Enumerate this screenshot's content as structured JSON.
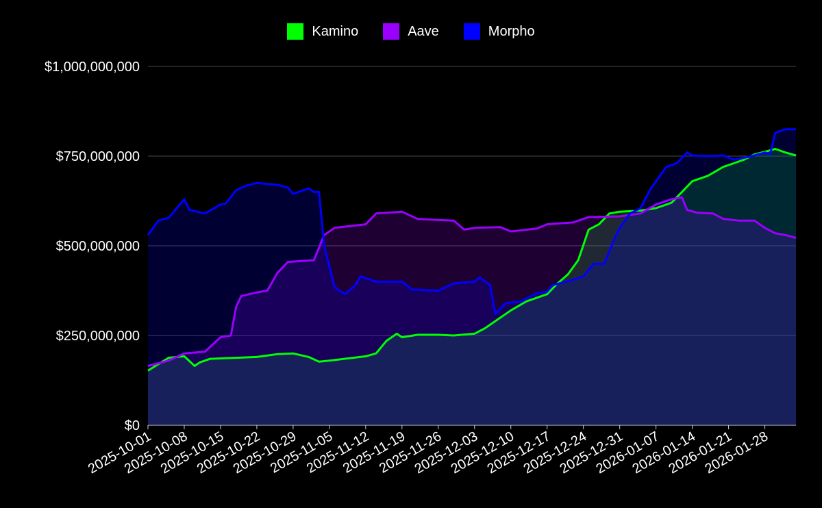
{
  "chart_data": {
    "type": "area",
    "title": "",
    "xlabel": "",
    "ylabel": "",
    "legend_position": "top-center",
    "grid": true,
    "ylim": [
      0,
      1000000000
    ],
    "y_ticks": [
      0,
      250000000,
      500000000,
      750000000,
      1000000000
    ],
    "y_tick_labels": [
      "$0",
      "$250,000,000",
      "$500,000,000",
      "$750,000,000",
      "$1,000,000,000"
    ],
    "x_range": [
      "2025-10-01",
      "2026-02-03"
    ],
    "x_tick_labels": [
      "2025-10-01",
      "2025-10-08",
      "2025-10-15",
      "2025-10-22",
      "2025-10-29",
      "2025-11-05",
      "2025-11-12",
      "2025-11-19",
      "2025-11-26",
      "2025-12-03",
      "2025-12-10",
      "2025-12-17",
      "2025-12-24",
      "2025-12-31",
      "2026-01-07",
      "2026-01-14",
      "2026-01-21",
      "2026-01-28"
    ],
    "series": [
      {
        "name": "Kamino",
        "color": "#00ff00",
        "fill": "#1f6b5a",
        "points": [
          [
            "2025-10-01",
            152000000
          ],
          [
            "2025-10-03",
            170000000
          ],
          [
            "2025-10-05",
            188000000
          ],
          [
            "2025-10-08",
            192000000
          ],
          [
            "2025-10-10",
            165000000
          ],
          [
            "2025-10-11",
            175000000
          ],
          [
            "2025-10-13",
            185000000
          ],
          [
            "2025-10-15",
            186000000
          ],
          [
            "2025-10-22",
            190000000
          ],
          [
            "2025-10-26",
            198000000
          ],
          [
            "2025-10-29",
            200000000
          ],
          [
            "2025-11-01",
            190000000
          ],
          [
            "2025-11-03",
            177000000
          ],
          [
            "2025-11-05",
            180000000
          ],
          [
            "2025-11-12",
            192000000
          ],
          [
            "2025-11-14",
            200000000
          ],
          [
            "2025-11-16",
            235000000
          ],
          [
            "2025-11-18",
            255000000
          ],
          [
            "2025-11-19",
            245000000
          ],
          [
            "2025-11-22",
            252000000
          ],
          [
            "2025-11-26",
            252000000
          ],
          [
            "2025-11-29",
            250000000
          ],
          [
            "2025-12-03",
            255000000
          ],
          [
            "2025-12-05",
            270000000
          ],
          [
            "2025-12-07",
            290000000
          ],
          [
            "2025-12-10",
            320000000
          ],
          [
            "2025-12-13",
            345000000
          ],
          [
            "2025-12-17",
            365000000
          ],
          [
            "2025-12-19",
            395000000
          ],
          [
            "2025-12-21",
            420000000
          ],
          [
            "2025-12-23",
            460000000
          ],
          [
            "2025-12-25",
            545000000
          ],
          [
            "2025-12-27",
            560000000
          ],
          [
            "2025-12-29",
            590000000
          ],
          [
            "2025-12-31",
            595000000
          ],
          [
            "2026-01-04",
            598000000
          ],
          [
            "2026-01-07",
            605000000
          ],
          [
            "2026-01-10",
            620000000
          ],
          [
            "2026-01-12",
            650000000
          ],
          [
            "2026-01-14",
            680000000
          ],
          [
            "2026-01-17",
            695000000
          ],
          [
            "2026-01-20",
            720000000
          ],
          [
            "2026-01-22",
            730000000
          ],
          [
            "2026-01-24",
            740000000
          ],
          [
            "2026-01-26",
            755000000
          ],
          [
            "2026-01-28",
            762000000
          ],
          [
            "2026-01-30",
            770000000
          ],
          [
            "2026-02-01",
            760000000
          ],
          [
            "2026-02-03",
            752000000
          ]
        ]
      },
      {
        "name": "Aave",
        "color": "#9b00ff",
        "fill": "#3b004e",
        "points": [
          [
            "2025-10-01",
            165000000
          ],
          [
            "2025-10-05",
            180000000
          ],
          [
            "2025-10-08",
            200000000
          ],
          [
            "2025-10-12",
            205000000
          ],
          [
            "2025-10-15",
            245000000
          ],
          [
            "2025-10-17",
            250000000
          ],
          [
            "2025-10-18",
            330000000
          ],
          [
            "2025-10-19",
            360000000
          ],
          [
            "2025-10-22",
            370000000
          ],
          [
            "2025-10-24",
            375000000
          ],
          [
            "2025-10-26",
            425000000
          ],
          [
            "2025-10-28",
            455000000
          ],
          [
            "2025-11-02",
            460000000
          ],
          [
            "2025-11-04",
            530000000
          ],
          [
            "2025-11-06",
            550000000
          ],
          [
            "2025-11-12",
            560000000
          ],
          [
            "2025-11-14",
            590000000
          ],
          [
            "2025-11-19",
            595000000
          ],
          [
            "2025-11-22",
            575000000
          ],
          [
            "2025-11-26",
            572000000
          ],
          [
            "2025-11-29",
            570000000
          ],
          [
            "2025-12-01",
            545000000
          ],
          [
            "2025-12-03",
            550000000
          ],
          [
            "2025-12-08",
            552000000
          ],
          [
            "2025-12-10",
            540000000
          ],
          [
            "2025-12-15",
            548000000
          ],
          [
            "2025-12-17",
            560000000
          ],
          [
            "2025-12-22",
            565000000
          ],
          [
            "2025-12-25",
            580000000
          ],
          [
            "2025-12-31",
            582000000
          ],
          [
            "2026-01-04",
            590000000
          ],
          [
            "2026-01-07",
            615000000
          ],
          [
            "2026-01-10",
            630000000
          ],
          [
            "2026-01-12",
            635000000
          ],
          [
            "2026-01-13",
            600000000
          ],
          [
            "2026-01-15",
            592000000
          ],
          [
            "2026-01-18",
            590000000
          ],
          [
            "2026-01-20",
            575000000
          ],
          [
            "2026-01-23",
            570000000
          ],
          [
            "2026-01-26",
            570000000
          ],
          [
            "2026-01-28",
            550000000
          ],
          [
            "2026-01-30",
            535000000
          ],
          [
            "2026-02-01",
            530000000
          ],
          [
            "2026-02-03",
            522000000
          ]
        ]
      },
      {
        "name": "Morpho",
        "color": "#0000ff",
        "fill": "#0a0a5e",
        "points": [
          [
            "2025-10-01",
            530000000
          ],
          [
            "2025-10-03",
            570000000
          ],
          [
            "2025-10-05",
            578000000
          ],
          [
            "2025-10-08",
            630000000
          ],
          [
            "2025-10-09",
            600000000
          ],
          [
            "2025-10-12",
            590000000
          ],
          [
            "2025-10-15",
            615000000
          ],
          [
            "2025-10-16",
            618000000
          ],
          [
            "2025-10-18",
            655000000
          ],
          [
            "2025-10-20",
            668000000
          ],
          [
            "2025-10-22",
            675000000
          ],
          [
            "2025-10-26",
            670000000
          ],
          [
            "2025-10-28",
            662000000
          ],
          [
            "2025-10-29",
            645000000
          ],
          [
            "2025-11-01",
            660000000
          ],
          [
            "2025-11-02",
            650000000
          ],
          [
            "2025-11-03",
            650000000
          ],
          [
            "2025-11-04",
            500000000
          ],
          [
            "2025-11-06",
            385000000
          ],
          [
            "2025-11-08",
            365000000
          ],
          [
            "2025-11-10",
            390000000
          ],
          [
            "2025-11-11",
            415000000
          ],
          [
            "2025-11-14",
            400000000
          ],
          [
            "2025-11-19",
            400000000
          ],
          [
            "2025-11-21",
            378000000
          ],
          [
            "2025-11-26",
            375000000
          ],
          [
            "2025-11-29",
            395000000
          ],
          [
            "2025-12-03",
            400000000
          ],
          [
            "2025-12-04",
            412000000
          ],
          [
            "2025-12-06",
            390000000
          ],
          [
            "2025-12-07",
            310000000
          ],
          [
            "2025-12-09",
            340000000
          ],
          [
            "2025-12-12",
            345000000
          ],
          [
            "2025-12-15",
            368000000
          ],
          [
            "2025-12-17",
            372000000
          ],
          [
            "2025-12-18",
            390000000
          ],
          [
            "2025-12-22",
            405000000
          ],
          [
            "2025-12-24",
            415000000
          ],
          [
            "2025-12-26",
            450000000
          ],
          [
            "2025-12-28",
            450000000
          ],
          [
            "2025-12-30",
            520000000
          ],
          [
            "2025-12-31",
            550000000
          ],
          [
            "2026-01-02",
            590000000
          ],
          [
            "2026-01-04",
            605000000
          ],
          [
            "2026-01-06",
            660000000
          ],
          [
            "2026-01-07",
            680000000
          ],
          [
            "2026-01-09",
            720000000
          ],
          [
            "2026-01-11",
            730000000
          ],
          [
            "2026-01-13",
            760000000
          ],
          [
            "2026-01-14",
            752000000
          ],
          [
            "2026-01-17",
            750000000
          ],
          [
            "2026-01-20",
            752000000
          ],
          [
            "2026-01-22",
            740000000
          ],
          [
            "2026-01-25",
            748000000
          ],
          [
            "2026-01-28",
            760000000
          ],
          [
            "2026-01-29",
            755000000
          ],
          [
            "2026-01-30",
            815000000
          ],
          [
            "2026-02-01",
            825000000
          ],
          [
            "2026-02-03",
            825000000
          ]
        ]
      }
    ]
  }
}
